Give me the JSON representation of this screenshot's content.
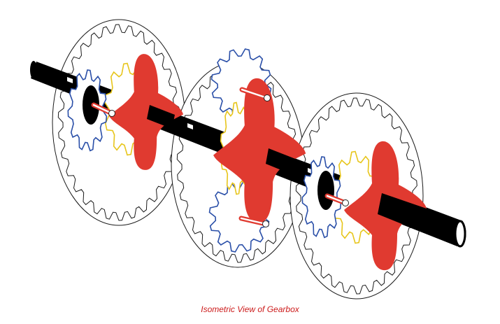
{
  "caption": "Isometric View of Gearbox",
  "colors": {
    "caption": "#cc1a1a",
    "ring_stroke": "#1a1a1a",
    "shaft": "#000000",
    "shaft_highlight": "#ffffff",
    "sun_gear": "#2a4fa8",
    "planet_gear": "#e7c51a",
    "carrier": "#e03a30",
    "pin": "#ffffff"
  },
  "icons": {
    "ring_gear": "ring-gear-icon",
    "sun_gear": "sun-gear-icon",
    "planet_gear": "planet-gear-icon",
    "carrier": "carrier-icon",
    "shaft": "shaft-icon"
  },
  "stages": 3
}
